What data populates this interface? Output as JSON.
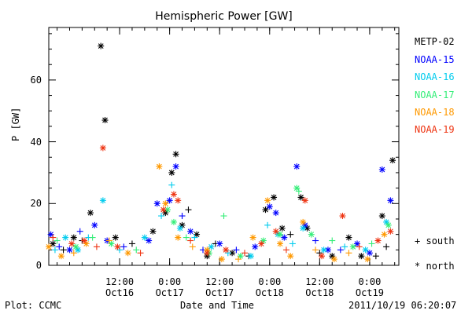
{
  "chart_data": {
    "type": "scatter",
    "title": "Hemispheric Power [GW]",
    "ylabel": "P [GW]",
    "xlabel": "Date and Time",
    "ylim": [
      0,
      77
    ],
    "xlim": [
      "2011-10-15T19:00",
      "2011-10-19T07:00"
    ],
    "yticks": [
      0,
      20,
      40,
      60
    ],
    "xticks": [
      {
        "time": "2011-10-16T12:00",
        "line1": "12:00",
        "line2": "Oct16"
      },
      {
        "time": "2011-10-17T00:00",
        "line1": "0:00",
        "line2": "Oct17"
      },
      {
        "time": "2011-10-17T12:00",
        "line1": "12:00",
        "line2": "Oct17"
      },
      {
        "time": "2011-10-18T00:00",
        "line1": "0:00",
        "line2": "Oct18"
      },
      {
        "time": "2011-10-18T12:00",
        "line1": "12:00",
        "line2": "Oct18"
      },
      {
        "time": "2011-10-19T00:00",
        "line1": "0:00",
        "line2": "Oct19"
      }
    ],
    "legend_position": "right",
    "series": [
      {
        "name": "METP-02",
        "color": "#000000",
        "points": [
          [
            "2011-10-15T20:00",
            7,
            "north"
          ],
          [
            "2011-10-15T22:30",
            5,
            "south"
          ],
          [
            "2011-10-16T01:00",
            9,
            "north"
          ],
          [
            "2011-10-16T03:00",
            8,
            "south"
          ],
          [
            "2011-10-16T05:00",
            17,
            "north"
          ],
          [
            "2011-10-16T07:30",
            71,
            "north"
          ],
          [
            "2011-10-16T08:30",
            47,
            "north"
          ],
          [
            "2011-10-16T11:00",
            9,
            "north"
          ],
          [
            "2011-10-16T15:00",
            7,
            "south"
          ],
          [
            "2011-10-16T20:00",
            11,
            "north"
          ],
          [
            "2011-10-16T23:00",
            17,
            "north"
          ],
          [
            "2011-10-17T00:30",
            30,
            "north"
          ],
          [
            "2011-10-17T01:30",
            36,
            "north"
          ],
          [
            "2011-10-17T03:00",
            13,
            "north"
          ],
          [
            "2011-10-17T04:30",
            18,
            "south"
          ],
          [
            "2011-10-17T06:30",
            10,
            "north"
          ],
          [
            "2011-10-17T09:00",
            3,
            "north"
          ],
          [
            "2011-10-17T11:00",
            7,
            "south"
          ],
          [
            "2011-10-17T15:00",
            4,
            "north"
          ],
          [
            "2011-10-17T19:00",
            3,
            "south"
          ],
          [
            "2011-10-17T23:00",
            18,
            "north"
          ],
          [
            "2011-10-18T01:00",
            22,
            "north"
          ],
          [
            "2011-10-18T03:00",
            12,
            "north"
          ],
          [
            "2011-10-18T05:00",
            10,
            "south"
          ],
          [
            "2011-10-18T07:30",
            22,
            "north"
          ],
          [
            "2011-10-18T09:00",
            12,
            "north"
          ],
          [
            "2011-10-18T12:00",
            4,
            "south"
          ],
          [
            "2011-10-18T15:00",
            3,
            "north"
          ],
          [
            "2011-10-18T19:00",
            9,
            "north"
          ],
          [
            "2011-10-18T22:00",
            3,
            "north"
          ],
          [
            "2011-10-19T01:30",
            3,
            "south"
          ],
          [
            "2011-10-19T03:00",
            16,
            "north"
          ],
          [
            "2011-10-19T04:00",
            6,
            "south"
          ],
          [
            "2011-10-19T05:30",
            34,
            "north"
          ]
        ]
      },
      {
        "name": "NOAA-15",
        "color": "#0000ff",
        "points": [
          [
            "2011-10-15T19:30",
            10,
            "north"
          ],
          [
            "2011-10-15T21:30",
            6,
            "south"
          ],
          [
            "2011-10-16T00:00",
            5,
            "north"
          ],
          [
            "2011-10-16T02:30",
            11,
            "south"
          ],
          [
            "2011-10-16T06:00",
            13,
            "north"
          ],
          [
            "2011-10-16T09:00",
            8,
            "north"
          ],
          [
            "2011-10-16T13:00",
            6,
            "south"
          ],
          [
            "2011-10-16T19:00",
            8,
            "north"
          ],
          [
            "2011-10-16T21:00",
            20,
            "north"
          ],
          [
            "2011-10-17T00:00",
            21,
            "north"
          ],
          [
            "2011-10-17T01:30",
            32,
            "north"
          ],
          [
            "2011-10-17T03:00",
            16,
            "south"
          ],
          [
            "2011-10-17T05:00",
            11,
            "north"
          ],
          [
            "2011-10-17T08:00",
            5,
            "south"
          ],
          [
            "2011-10-17T12:00",
            7,
            "north"
          ],
          [
            "2011-10-17T16:00",
            5,
            "south"
          ],
          [
            "2011-10-17T20:30",
            6,
            "north"
          ],
          [
            "2011-10-18T00:00",
            19,
            "north"
          ],
          [
            "2011-10-18T01:30",
            17,
            "north"
          ],
          [
            "2011-10-18T03:30",
            9,
            "north"
          ],
          [
            "2011-10-18T06:30",
            32,
            "north"
          ],
          [
            "2011-10-18T08:30",
            13,
            "north"
          ],
          [
            "2011-10-18T11:00",
            8,
            "south"
          ],
          [
            "2011-10-18T14:00",
            5,
            "north"
          ],
          [
            "2011-10-18T17:00",
            5,
            "south"
          ],
          [
            "2011-10-18T21:00",
            7,
            "north"
          ],
          [
            "2011-10-19T00:00",
            4,
            "north"
          ],
          [
            "2011-10-19T03:00",
            31,
            "north"
          ],
          [
            "2011-10-19T05:00",
            21,
            "north"
          ]
        ]
      },
      {
        "name": "NOAA-16",
        "color": "#00ccee",
        "points": [
          [
            "2011-10-15T20:30",
            5,
            "south"
          ],
          [
            "2011-10-15T23:00",
            9,
            "north"
          ],
          [
            "2011-10-16T02:00",
            5,
            "north"
          ],
          [
            "2011-10-16T04:30",
            9,
            "south"
          ],
          [
            "2011-10-16T08:00",
            21,
            "north"
          ],
          [
            "2011-10-16T12:00",
            5,
            "south"
          ],
          [
            "2011-10-16T18:00",
            9,
            "north"
          ],
          [
            "2011-10-16T22:00",
            16,
            "south"
          ],
          [
            "2011-10-17T00:30",
            26,
            "south"
          ],
          [
            "2011-10-17T02:30",
            12,
            "north"
          ],
          [
            "2011-10-17T06:00",
            9,
            "south"
          ],
          [
            "2011-10-17T10:00",
            6,
            "north"
          ],
          [
            "2011-10-17T14:00",
            4,
            "south"
          ],
          [
            "2011-10-17T19:30",
            3,
            "north"
          ],
          [
            "2011-10-17T23:30",
            13,
            "south"
          ],
          [
            "2011-10-18T02:00",
            10,
            "north"
          ],
          [
            "2011-10-18T05:30",
            7,
            "south"
          ],
          [
            "2011-10-18T08:00",
            12,
            "north"
          ],
          [
            "2011-10-18T13:00",
            5,
            "north"
          ],
          [
            "2011-10-18T18:00",
            6,
            "south"
          ],
          [
            "2011-10-18T23:00",
            5,
            "north"
          ],
          [
            "2011-10-19T04:00",
            14,
            "north"
          ]
        ]
      },
      {
        "name": "NOAA-17",
        "color": "#33ee77",
        "points": [
          [
            "2011-10-15T21:00",
            8,
            "south"
          ],
          [
            "2011-10-16T01:30",
            6,
            "north"
          ],
          [
            "2011-10-16T05:30",
            9,
            "south"
          ],
          [
            "2011-10-16T10:00",
            7,
            "north"
          ],
          [
            "2011-10-16T16:00",
            5,
            "south"
          ],
          [
            "2011-10-16T23:30",
            18,
            "north"
          ],
          [
            "2011-10-17T01:00",
            14,
            "north"
          ],
          [
            "2011-10-17T04:00",
            9,
            "south"
          ],
          [
            "2011-10-17T09:30",
            4,
            "north"
          ],
          [
            "2011-10-17T13:00",
            16,
            "south"
          ],
          [
            "2011-10-17T17:00",
            3,
            "north"
          ],
          [
            "2011-10-17T22:30",
            8,
            "north"
          ],
          [
            "2011-10-18T02:30",
            10,
            "north"
          ],
          [
            "2011-10-18T06:30",
            25,
            "north"
          ],
          [
            "2011-10-18T07:00",
            24,
            "south"
          ],
          [
            "2011-10-18T10:00",
            10,
            "north"
          ],
          [
            "2011-10-18T15:00",
            8,
            "south"
          ],
          [
            "2011-10-18T20:00",
            6,
            "north"
          ],
          [
            "2011-10-19T00:30",
            7,
            "south"
          ],
          [
            "2011-10-19T04:30",
            13,
            "north"
          ]
        ]
      },
      {
        "name": "NOAA-18",
        "color": "#ff9900",
        "points": [
          [
            "2011-10-15T19:00",
            6,
            "north"
          ],
          [
            "2011-10-15T22:00",
            3,
            "north"
          ],
          [
            "2011-10-16T01:00",
            4,
            "south"
          ],
          [
            "2011-10-16T04:00",
            7,
            "north"
          ],
          [
            "2011-10-16T09:30",
            8,
            "south"
          ],
          [
            "2011-10-16T14:00",
            4,
            "north"
          ],
          [
            "2011-10-16T21:30",
            32,
            "north"
          ],
          [
            "2011-10-16T23:00",
            20,
            "north"
          ],
          [
            "2011-10-17T02:00",
            9,
            "north"
          ],
          [
            "2011-10-17T05:30",
            6,
            "south"
          ],
          [
            "2011-10-17T09:00",
            5,
            "north"
          ],
          [
            "2011-10-17T12:30",
            2,
            "north"
          ],
          [
            "2011-10-17T16:30",
            2,
            "south"
          ],
          [
            "2011-10-17T20:00",
            9,
            "north"
          ],
          [
            "2011-10-17T23:30",
            21,
            "north"
          ],
          [
            "2011-10-18T02:30",
            7,
            "north"
          ],
          [
            "2011-10-18T05:00",
            3,
            "north"
          ],
          [
            "2011-10-18T08:00",
            14,
            "north"
          ],
          [
            "2011-10-18T11:00",
            5,
            "south"
          ],
          [
            "2011-10-18T15:30",
            2,
            "north"
          ],
          [
            "2011-10-18T19:00",
            4,
            "south"
          ],
          [
            "2011-10-18T23:30",
            2,
            "north"
          ],
          [
            "2011-10-19T03:30",
            10,
            "north"
          ]
        ]
      },
      {
        "name": "NOAA-19",
        "color": "#ee3311",
        "points": [
          [
            "2011-10-15T20:00",
            9,
            "south"
          ],
          [
            "2011-10-16T00:30",
            7,
            "north"
          ],
          [
            "2011-10-16T03:30",
            8,
            "north"
          ],
          [
            "2011-10-16T06:30",
            6,
            "south"
          ],
          [
            "2011-10-16T08:00",
            38,
            "north"
          ],
          [
            "2011-10-16T11:30",
            6,
            "north"
          ],
          [
            "2011-10-16T17:00",
            4,
            "south"
          ],
          [
            "2011-10-16T22:30",
            18,
            "north"
          ],
          [
            "2011-10-17T01:00",
            23,
            "north"
          ],
          [
            "2011-10-17T02:00",
            21,
            "north"
          ],
          [
            "2011-10-17T05:00",
            8,
            "south"
          ],
          [
            "2011-10-17T09:00",
            4,
            "north"
          ],
          [
            "2011-10-17T13:30",
            5,
            "north"
          ],
          [
            "2011-10-17T18:00",
            4,
            "south"
          ],
          [
            "2011-10-17T22:00",
            7,
            "north"
          ],
          [
            "2011-10-18T01:30",
            11,
            "north"
          ],
          [
            "2011-10-18T04:00",
            5,
            "south"
          ],
          [
            "2011-10-18T08:30",
            21,
            "north"
          ],
          [
            "2011-10-18T12:30",
            3,
            "north"
          ],
          [
            "2011-10-18T17:30",
            16,
            "north"
          ],
          [
            "2011-10-18T21:30",
            6,
            "south"
          ],
          [
            "2011-10-19T02:00",
            8,
            "north"
          ],
          [
            "2011-10-19T05:00",
            11,
            "north"
          ]
        ]
      }
    ],
    "marker_legend": [
      {
        "symbol": "+",
        "label": "south"
      },
      {
        "symbol": "*",
        "label": "north"
      }
    ]
  },
  "footer": {
    "plot_credit": "Plot: CCMC",
    "timestamp": "2011/10/19 06:20:07"
  }
}
